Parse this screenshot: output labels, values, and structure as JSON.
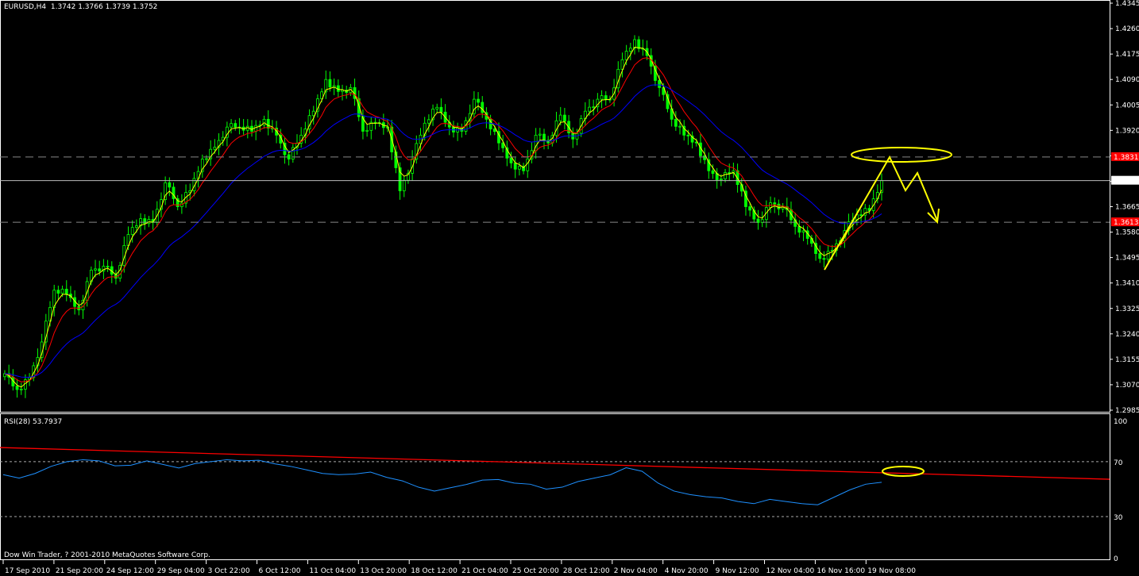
{
  "header": {
    "symbol": "EURUSD,H4",
    "ohlc": "1.3742 1.3766 1.3739 1.3752"
  },
  "rsi_header": "RSI(28) 53.7937",
  "copyright": "Dow Win Trader, ? 2001-2010 MetaQuotes Software Corp.",
  "colors": {
    "bull": "#00ff00",
    "ma_fast": "#ffff00",
    "ma_mid": "#ff0000",
    "ma_slow": "#0000ff",
    "rsi": "#1e90ff",
    "trendline": "#ff0000",
    "annotation": "#ffff00",
    "level_label": "#ff0000",
    "background": "#000000"
  },
  "chart_data": [
    {
      "type": "candlestick",
      "title": "EURUSD,H4",
      "ylim": [
        1.2985,
        1.4345
      ],
      "y_ticks": [
        "1.4345",
        "1.4260",
        "1.4175",
        "1.4090",
        "1.4005",
        "1.3920",
        "1.3835",
        "1.3750",
        "1.3665",
        "1.3580",
        "1.3495",
        "1.3410",
        "1.3325",
        "1.3240",
        "1.3155",
        "1.3070",
        "1.2985"
      ],
      "y_tick_labels_shown": [
        "1.4345",
        "1.4260",
        "1.4175",
        "1.4090",
        "1.4005",
        "1.3920",
        "1.3665",
        "1.3580",
        "1.3495",
        "1.3410",
        "1.3325",
        "1.3240",
        "1.3155",
        "1.3070",
        "1.2985"
      ],
      "x_tick_labels": [
        "17 Sep 2010",
        "21 Sep 20:00",
        "24 Sep 12:00",
        "29 Sep 04:00",
        "3 Oct 22:00",
        "6 Oct 12:00",
        "11 Oct 04:00",
        "13 Oct 20:00",
        "18 Oct 12:00",
        "21 Oct 04:00",
        "25 Oct 20:00",
        "28 Oct 12:00",
        "2 Nov 04:00",
        "4 Nov 20:00",
        "9 Nov 12:00",
        "12 Nov 04:00",
        "16 Nov 16:00",
        "19 Nov 08:00"
      ],
      "closes": [
        1.3107,
        1.3054,
        1.3094,
        1.3213,
        1.3386,
        1.3373,
        1.332,
        1.3453,
        1.3466,
        1.3426,
        1.3572,
        1.3625,
        1.3612,
        1.3745,
        1.3665,
        1.3718,
        1.3824,
        1.3864,
        1.3931,
        1.3931,
        1.3917,
        1.3957,
        1.3904,
        1.3824,
        1.3904,
        1.3984,
        1.409,
        1.405,
        1.4063,
        1.3917,
        1.3944,
        1.3931,
        1.3718,
        1.3824,
        1.3944,
        1.3997,
        1.3931,
        1.3917,
        1.4024,
        1.3957,
        1.3878,
        1.3811,
        1.3785,
        1.3904,
        1.3878,
        1.3971,
        1.3891,
        1.3984,
        1.4024,
        1.4024,
        1.4156,
        1.4223,
        1.417,
        1.4063,
        1.3957,
        1.3904,
        1.3878,
        1.3785,
        1.3758,
        1.3785,
        1.3665,
        1.3612,
        1.3678,
        1.3665,
        1.3599,
        1.3559,
        1.3492,
        1.3519,
        1.3585,
        1.3638,
        1.3652,
        1.3752
      ],
      "moving_averages": [
        "fast",
        "mid",
        "slow"
      ],
      "levels": [
        {
          "price": "1.3831",
          "style": "dashed"
        },
        {
          "price": "1.3613",
          "style": "dashed"
        }
      ],
      "current_price": "1.3752"
    },
    {
      "type": "line",
      "title": "RSI(28) 53.7937",
      "ylim": [
        0,
        100
      ],
      "y_ticks": [
        "100",
        "70",
        "30",
        "0"
      ],
      "levels": [
        70,
        30
      ],
      "values": [
        60,
        58,
        62,
        66,
        70,
        72,
        70,
        67,
        68,
        70,
        68,
        66,
        68,
        70,
        72,
        70,
        71,
        69,
        66,
        64,
        62,
        60,
        61,
        63,
        58,
        56,
        52,
        48,
        51,
        54,
        56,
        57,
        55,
        53,
        50,
        52,
        55,
        58,
        61,
        65,
        63,
        55,
        48,
        46,
        45,
        43,
        41,
        40,
        42,
        41,
        40,
        38,
        44,
        50,
        53,
        55
      ],
      "trendline": [
        80.3,
        57.2
      ]
    }
  ]
}
